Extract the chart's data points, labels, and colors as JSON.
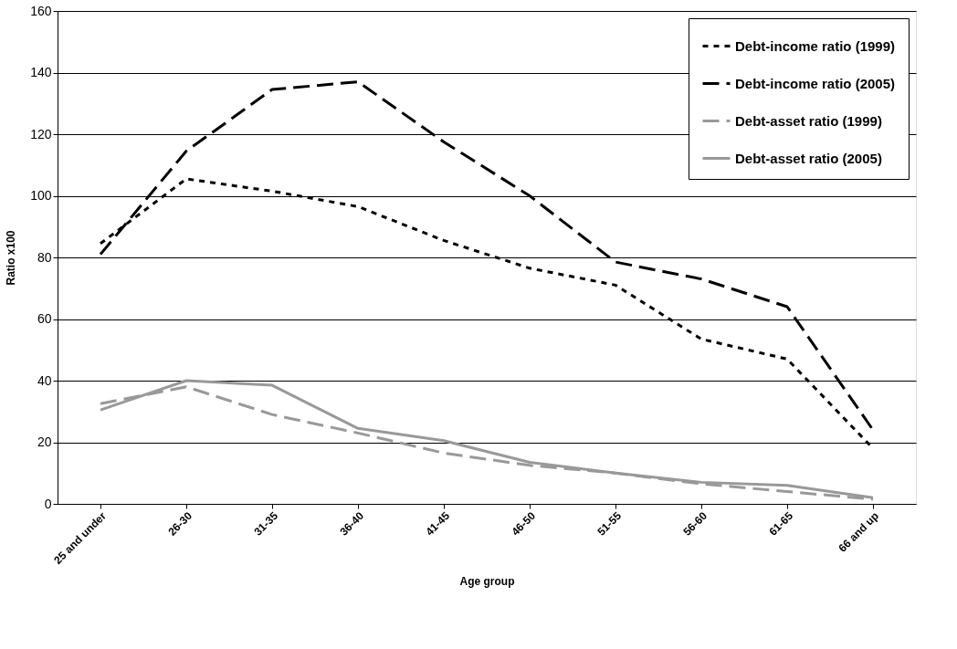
{
  "chart_data": {
    "type": "line",
    "xlabel": "Age group",
    "ylabel": "Ratio x100",
    "categories": [
      "25 and under",
      "26-30",
      "31-35",
      "36-40",
      "41-45",
      "46-50",
      "51-55",
      "56-60",
      "61-65",
      "66 and up"
    ],
    "ylim": [
      0,
      160
    ],
    "yticks": [
      0,
      20,
      40,
      60,
      80,
      100,
      120,
      140,
      160
    ],
    "grid": "y",
    "legend": "top right",
    "marker": "none",
    "series": [
      {
        "name": "Debt-income ratio (1999)",
        "color": "#000000",
        "line_style": "dotted",
        "values": [
          84.5,
          105.5,
          101.5,
          96.5,
          85.5,
          76.5,
          71,
          53.5,
          47,
          18
        ]
      },
      {
        "name": "Debt-income ratio (2005)",
        "color": "#000000",
        "line_style": "dashed",
        "values": [
          81,
          114.5,
          134.5,
          137,
          117.5,
          100,
          78.5,
          73,
          64,
          24
        ]
      },
      {
        "name": "Debt-asset ratio (1999)",
        "color": "#999999",
        "line_style": "dashed",
        "values": [
          32.5,
          38,
          29,
          23,
          16.5,
          12.5,
          10,
          6.5,
          4,
          1.5
        ]
      },
      {
        "name": "Debt-asset ratio (2005)",
        "color": "#999999",
        "line_style": "solid",
        "values": [
          30.5,
          40,
          38.5,
          24.5,
          20.5,
          13.5,
          10,
          7,
          6,
          2
        ]
      }
    ]
  }
}
